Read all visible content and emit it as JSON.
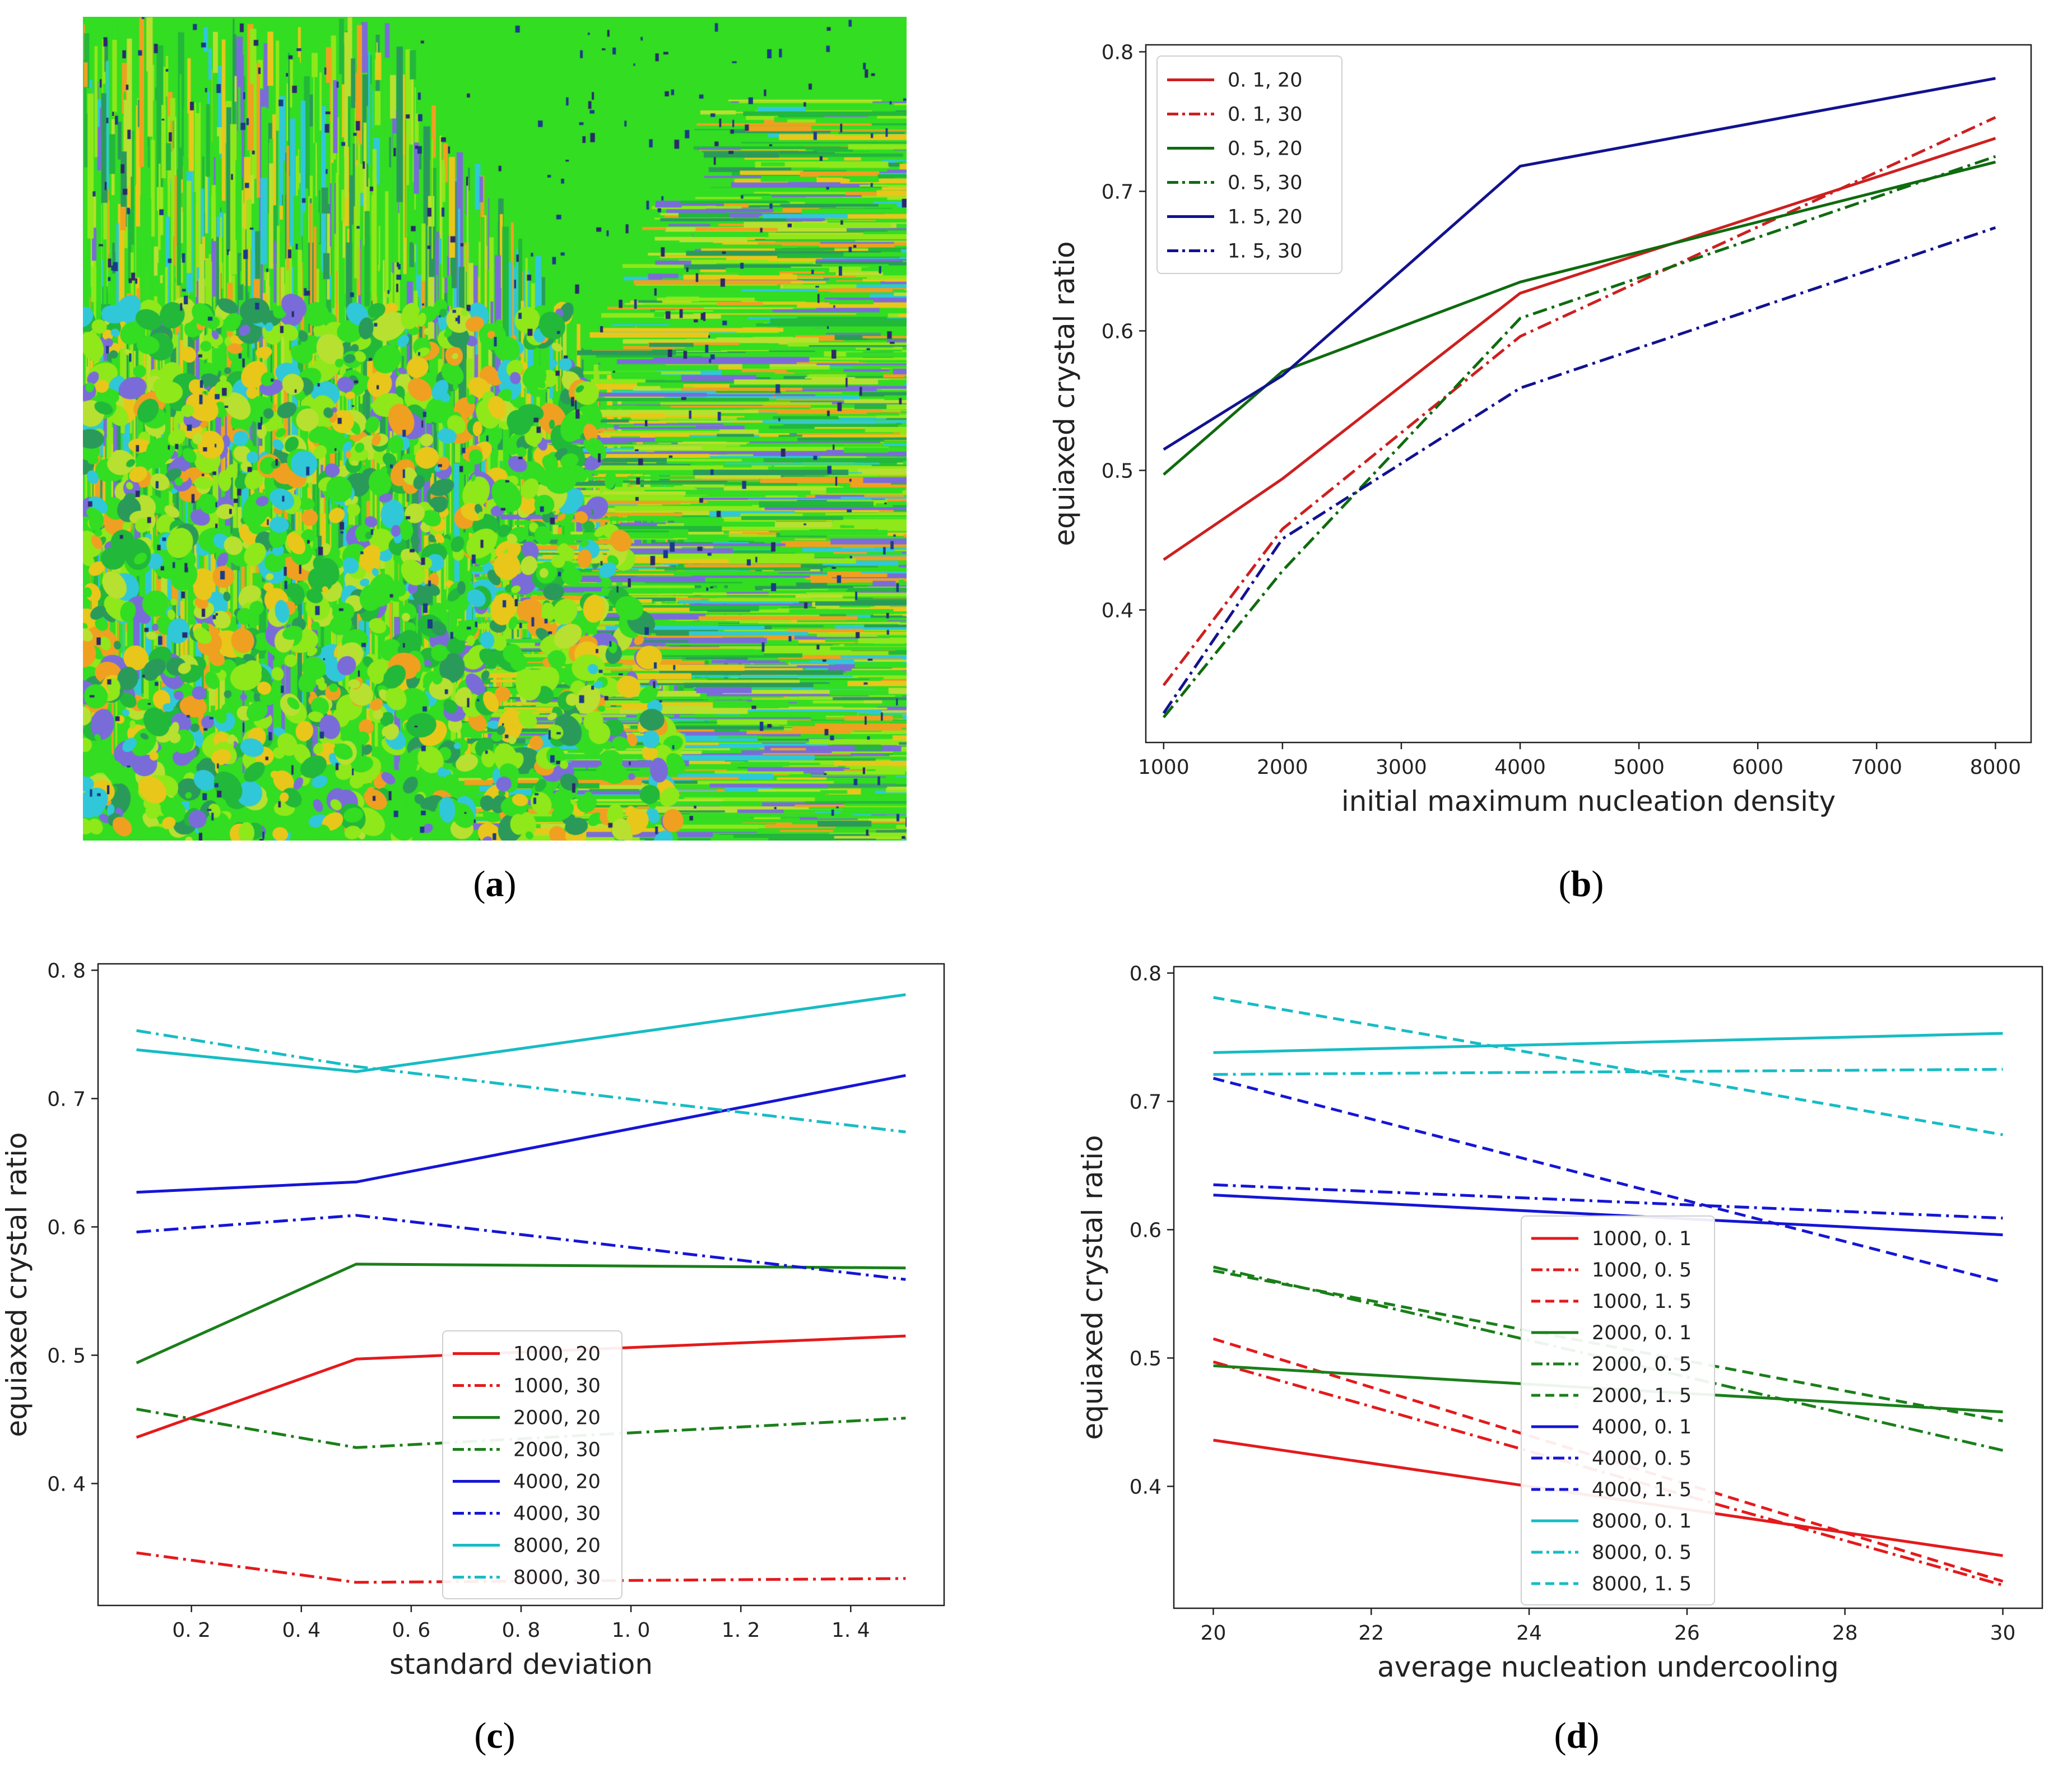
{
  "captions": [
    "a",
    "b",
    "c",
    "d"
  ],
  "colors": {
    "red": "#e41a1c",
    "green": "#1a7f1a",
    "navy": "#12128f",
    "blue": "#1515d6",
    "cyan": "#17bcc4",
    "darkred": "#cc2020",
    "darkgreen": "#0f6b0f",
    "microstructure_green": "#33dd22",
    "microstructure_lime": "#8fe81a",
    "microstructure_yellow": "#e8c71a",
    "microstructure_orange": "#f0a020",
    "microstructure_cyan": "#30c8d8",
    "microstructure_purple": "#7a6cd8"
  },
  "chart_data": [
    {
      "id": "b",
      "type": "line",
      "title": "",
      "xlabel": "initial maximum nucleation density",
      "ylabel": "equiaxed crystal ratio",
      "x": [
        1000,
        2000,
        4000,
        8000
      ],
      "xlim": [
        850,
        8300
      ],
      "ylim": [
        0.305,
        0.805
      ],
      "xticks": [
        1000,
        2000,
        3000,
        4000,
        5000,
        6000,
        7000,
        8000
      ],
      "yticks": [
        0.4,
        0.5,
        0.6,
        0.7,
        0.8
      ],
      "ytick_labels": [
        "0.4",
        "0.5",
        "0.6",
        "0.7",
        "0.8"
      ],
      "legend_position": "upper-left",
      "series": [
        {
          "name": "0.1, 20",
          "label": "0. 1,  20",
          "color": "#cc2020",
          "style": "solid",
          "values": [
            0.436,
            0.494,
            0.627,
            0.738
          ]
        },
        {
          "name": "0.1, 30",
          "label": "0. 1,  30",
          "color": "#cc2020",
          "style": "dashdot",
          "values": [
            0.346,
            0.458,
            0.596,
            0.753
          ]
        },
        {
          "name": "0.5, 20",
          "label": "0. 5,  20",
          "color": "#0f6b0f",
          "style": "solid",
          "values": [
            0.497,
            0.571,
            0.635,
            0.721
          ]
        },
        {
          "name": "0.5, 30",
          "label": "0. 5,  30",
          "color": "#0f6b0f",
          "style": "dashdot",
          "values": [
            0.323,
            0.428,
            0.609,
            0.725
          ]
        },
        {
          "name": "1.5, 20",
          "label": "1. 5,  20",
          "color": "#12128f",
          "style": "solid",
          "values": [
            0.515,
            0.568,
            0.718,
            0.781
          ]
        },
        {
          "name": "1.5, 30",
          "label": "1. 5,  30",
          "color": "#12128f",
          "style": "dashdot",
          "values": [
            0.326,
            0.451,
            0.559,
            0.674
          ]
        }
      ]
    },
    {
      "id": "c",
      "type": "line",
      "title": "",
      "xlabel": "standard deviation",
      "ylabel": "equiaxed crystal ratio",
      "x": [
        0.1,
        0.5,
        1.5
      ],
      "xlim": [
        0.03,
        1.57
      ],
      "ylim": [
        0.305,
        0.805
      ],
      "xticks": [
        0.2,
        0.4,
        0.6,
        0.8,
        1.0,
        1.2,
        1.4
      ],
      "xtick_labels": [
        "0. 2",
        "0. 4",
        "0. 6",
        "0. 8",
        "1. 0",
        "1. 2",
        "1. 4"
      ],
      "yticks": [
        0.4,
        0.5,
        0.6,
        0.7,
        0.8
      ],
      "ytick_labels": [
        "0. 4",
        "0. 5",
        "0. 6",
        "0. 7",
        "0. 8"
      ],
      "legend_position": "lower-center",
      "series": [
        {
          "name": "1000, 20",
          "label": "1000,  20",
          "color": "#e41a1c",
          "style": "solid",
          "values": [
            0.436,
            0.497,
            0.515
          ]
        },
        {
          "name": "1000, 30",
          "label": "1000,  30",
          "color": "#e41a1c",
          "style": "dashdot",
          "values": [
            0.346,
            0.323,
            0.326
          ]
        },
        {
          "name": "2000, 20",
          "label": "2000,  20",
          "color": "#1a7f1a",
          "style": "solid",
          "values": [
            0.494,
            0.571,
            0.568
          ]
        },
        {
          "name": "2000, 30",
          "label": "2000,  30",
          "color": "#1a7f1a",
          "style": "dashdot",
          "values": [
            0.458,
            0.428,
            0.451
          ]
        },
        {
          "name": "4000, 20",
          "label": "4000,  20",
          "color": "#1515d6",
          "style": "solid",
          "values": [
            0.627,
            0.635,
            0.718
          ]
        },
        {
          "name": "4000, 30",
          "label": "4000,  30",
          "color": "#1515d6",
          "style": "dashdot",
          "values": [
            0.596,
            0.609,
            0.559
          ]
        },
        {
          "name": "8000, 20",
          "label": "8000,  20",
          "color": "#17bcc4",
          "style": "solid",
          "values": [
            0.738,
            0.721,
            0.781
          ]
        },
        {
          "name": "8000, 30",
          "label": "8000,  30",
          "color": "#17bcc4",
          "style": "dashdot",
          "values": [
            0.753,
            0.725,
            0.674
          ]
        }
      ]
    },
    {
      "id": "d",
      "type": "line",
      "title": "",
      "xlabel": "average nucleation undercooling",
      "ylabel": "equiaxed crystal ratio",
      "x": [
        20,
        30
      ],
      "xlim": [
        19.5,
        30.5
      ],
      "ylim": [
        0.305,
        0.805
      ],
      "xticks": [
        20,
        22,
        24,
        26,
        28,
        30
      ],
      "yticks": [
        0.4,
        0.5,
        0.6,
        0.7,
        0.8
      ],
      "ytick_labels": [
        "0.4",
        "0.5",
        "0.6",
        "0.7",
        "0.8"
      ],
      "legend_position": "lower-center",
      "series": [
        {
          "name": "1000, 0.1",
          "label": "1000,  0. 1",
          "color": "#e41a1c",
          "style": "solid",
          "values": [
            0.436,
            0.346
          ]
        },
        {
          "name": "1000, 0.5",
          "label": "1000,  0. 5",
          "color": "#e41a1c",
          "style": "dashdot",
          "values": [
            0.497,
            0.323
          ]
        },
        {
          "name": "1000, 1.5",
          "label": "1000,  1. 5",
          "color": "#e41a1c",
          "style": "dashed",
          "values": [
            0.515,
            0.326
          ]
        },
        {
          "name": "2000, 0.1",
          "label": "2000,  0. 1",
          "color": "#1a7f1a",
          "style": "solid",
          "values": [
            0.494,
            0.458
          ]
        },
        {
          "name": "2000, 0.5",
          "label": "2000,  0. 5",
          "color": "#1a7f1a",
          "style": "dashdot",
          "values": [
            0.571,
            0.428
          ]
        },
        {
          "name": "2000, 1.5",
          "label": "2000,  1. 5",
          "color": "#1a7f1a",
          "style": "dashed",
          "values": [
            0.568,
            0.451
          ]
        },
        {
          "name": "4000, 0.1",
          "label": "4000,  0. 1",
          "color": "#1515d6",
          "style": "solid",
          "values": [
            0.627,
            0.596
          ]
        },
        {
          "name": "4000, 0.5",
          "label": "4000,  0. 5",
          "color": "#1515d6",
          "style": "dashdot",
          "values": [
            0.635,
            0.609
          ]
        },
        {
          "name": "4000, 1.5",
          "label": "4000,  1. 5",
          "color": "#1515d6",
          "style": "dashed",
          "values": [
            0.718,
            0.559
          ]
        },
        {
          "name": "8000, 0.1",
          "label": "8000,  0. 1",
          "color": "#17bcc4",
          "style": "solid",
          "values": [
            0.738,
            0.753
          ]
        },
        {
          "name": "8000, 0.5",
          "label": "8000,  0. 5",
          "color": "#17bcc4",
          "style": "dashdot",
          "values": [
            0.721,
            0.725
          ]
        },
        {
          "name": "8000, 1.5",
          "label": "8000,  1. 5",
          "color": "#17bcc4",
          "style": "dashed",
          "values": [
            0.781,
            0.674
          ]
        }
      ]
    }
  ]
}
